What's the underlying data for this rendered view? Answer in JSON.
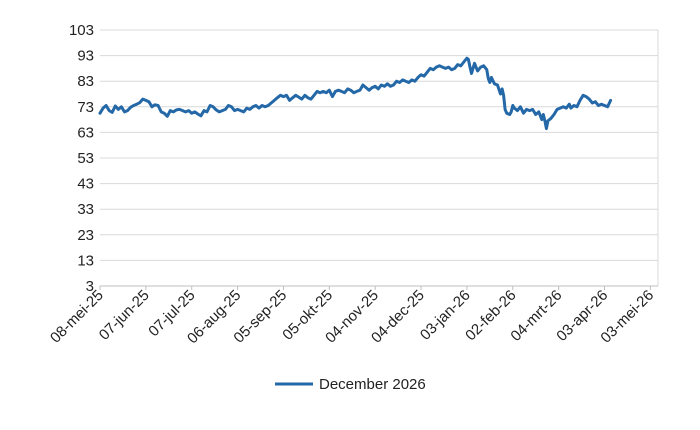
{
  "chart_data": {
    "type": "line",
    "title": "",
    "xlabel": "",
    "ylabel": "",
    "ylim": [
      3,
      103
    ],
    "yticks": [
      3,
      13,
      23,
      33,
      43,
      53,
      63,
      73,
      83,
      93,
      103
    ],
    "xlim": [
      "2025-05-08",
      "2026-05-08"
    ],
    "x_tick_labels": [
      "08-mei-25",
      "07-jun-25",
      "07-jul-25",
      "06-aug-25",
      "05-sep-25",
      "05-okt-25",
      "04-nov-25",
      "04-dec-25",
      "03-jan-26",
      "02-feb-26",
      "04-mrt-26",
      "03-apr-26",
      "03-mei-26"
    ],
    "x_tick_dates": [
      "2025-05-08",
      "2025-06-07",
      "2025-07-07",
      "2025-08-06",
      "2025-09-05",
      "2025-10-05",
      "2025-11-04",
      "2025-12-04",
      "2026-01-03",
      "2026-02-02",
      "2026-03-04",
      "2026-04-03",
      "2026-05-03"
    ],
    "grid": "horizontal",
    "legend": "bottom-center",
    "series": [
      {
        "name": "December 2026",
        "color": "#2468a8",
        "points": [
          [
            "2025-05-08",
            70.5
          ],
          [
            "2025-05-10",
            72.5
          ],
          [
            "2025-05-12",
            73.5
          ],
          [
            "2025-05-14",
            71.5
          ],
          [
            "2025-05-16",
            70.8
          ],
          [
            "2025-05-18",
            73.3
          ],
          [
            "2025-05-20",
            72.0
          ],
          [
            "2025-05-22",
            73.0
          ],
          [
            "2025-05-24",
            71.0
          ],
          [
            "2025-05-26",
            71.5
          ],
          [
            "2025-05-28",
            72.8
          ],
          [
            "2025-05-30",
            73.5
          ],
          [
            "2025-06-01",
            74.0
          ],
          [
            "2025-06-03",
            74.6
          ],
          [
            "2025-06-05",
            76.0
          ],
          [
            "2025-06-07",
            75.5
          ],
          [
            "2025-06-09",
            75.0
          ],
          [
            "2025-06-11",
            73.0
          ],
          [
            "2025-06-13",
            73.8
          ],
          [
            "2025-06-15",
            73.5
          ],
          [
            "2025-06-17",
            71.0
          ],
          [
            "2025-06-19",
            70.5
          ],
          [
            "2025-06-21",
            69.3
          ],
          [
            "2025-06-23",
            71.5
          ],
          [
            "2025-06-25",
            71.0
          ],
          [
            "2025-06-27",
            71.8
          ],
          [
            "2025-06-29",
            72.0
          ],
          [
            "2025-07-01",
            71.5
          ],
          [
            "2025-07-03",
            71.0
          ],
          [
            "2025-07-05",
            71.5
          ],
          [
            "2025-07-07",
            70.5
          ],
          [
            "2025-07-09",
            71.0
          ],
          [
            "2025-07-11",
            70.2
          ],
          [
            "2025-07-13",
            69.5
          ],
          [
            "2025-07-15",
            71.5
          ],
          [
            "2025-07-17",
            71.0
          ],
          [
            "2025-07-19",
            73.5
          ],
          [
            "2025-07-21",
            73.0
          ],
          [
            "2025-07-23",
            71.8
          ],
          [
            "2025-07-25",
            71.0
          ],
          [
            "2025-07-27",
            71.5
          ],
          [
            "2025-07-29",
            72.0
          ],
          [
            "2025-07-31",
            73.5
          ],
          [
            "2025-08-02",
            73.0
          ],
          [
            "2025-08-04",
            71.5
          ],
          [
            "2025-08-06",
            72.0
          ],
          [
            "2025-08-08",
            71.5
          ],
          [
            "2025-08-10",
            71.0
          ],
          [
            "2025-08-12",
            72.5
          ],
          [
            "2025-08-14",
            72.0
          ],
          [
            "2025-08-16",
            73.0
          ],
          [
            "2025-08-18",
            73.5
          ],
          [
            "2025-08-20",
            72.5
          ],
          [
            "2025-08-22",
            73.5
          ],
          [
            "2025-08-24",
            73.0
          ],
          [
            "2025-08-26",
            73.5
          ],
          [
            "2025-08-28",
            74.5
          ],
          [
            "2025-08-30",
            75.5
          ],
          [
            "2025-09-01",
            76.5
          ],
          [
            "2025-09-03",
            77.5
          ],
          [
            "2025-09-05",
            77.0
          ],
          [
            "2025-09-07",
            77.5
          ],
          [
            "2025-09-09",
            75.5
          ],
          [
            "2025-09-11",
            76.5
          ],
          [
            "2025-09-13",
            77.5
          ],
          [
            "2025-09-15",
            76.8
          ],
          [
            "2025-09-17",
            76.0
          ],
          [
            "2025-09-19",
            77.5
          ],
          [
            "2025-09-21",
            76.5
          ],
          [
            "2025-09-23",
            76.0
          ],
          [
            "2025-09-25",
            77.5
          ],
          [
            "2025-09-27",
            79.0
          ],
          [
            "2025-09-29",
            78.5
          ],
          [
            "2025-10-01",
            79.0
          ],
          [
            "2025-10-03",
            78.5
          ],
          [
            "2025-10-05",
            79.5
          ],
          [
            "2025-10-07",
            77.0
          ],
          [
            "2025-10-09",
            79.0
          ],
          [
            "2025-10-11",
            79.5
          ],
          [
            "2025-10-13",
            79.0
          ],
          [
            "2025-10-15",
            78.5
          ],
          [
            "2025-10-17",
            80.0
          ],
          [
            "2025-10-19",
            79.5
          ],
          [
            "2025-10-21",
            78.5
          ],
          [
            "2025-10-23",
            79.0
          ],
          [
            "2025-10-25",
            79.5
          ],
          [
            "2025-10-27",
            81.5
          ],
          [
            "2025-10-29",
            80.5
          ],
          [
            "2025-10-31",
            79.5
          ],
          [
            "2025-11-02",
            80.5
          ],
          [
            "2025-11-04",
            81.0
          ],
          [
            "2025-11-06",
            80.0
          ],
          [
            "2025-11-08",
            81.5
          ],
          [
            "2025-11-10",
            81.0
          ],
          [
            "2025-11-12",
            82.0
          ],
          [
            "2025-11-14",
            81.0
          ],
          [
            "2025-11-16",
            81.5
          ],
          [
            "2025-11-18",
            83.0
          ],
          [
            "2025-11-20",
            82.5
          ],
          [
            "2025-11-22",
            83.5
          ],
          [
            "2025-11-24",
            83.0
          ],
          [
            "2025-11-26",
            82.5
          ],
          [
            "2025-11-28",
            83.5
          ],
          [
            "2025-11-30",
            83.0
          ],
          [
            "2025-12-02",
            84.5
          ],
          [
            "2025-12-04",
            85.5
          ],
          [
            "2025-12-06",
            85.0
          ],
          [
            "2025-12-08",
            86.5
          ],
          [
            "2025-12-10",
            88.0
          ],
          [
            "2025-12-12",
            87.5
          ],
          [
            "2025-12-14",
            88.5
          ],
          [
            "2025-12-16",
            89.0
          ],
          [
            "2025-12-18",
            88.5
          ],
          [
            "2025-12-20",
            88.0
          ],
          [
            "2025-12-22",
            88.5
          ],
          [
            "2025-12-24",
            87.5
          ],
          [
            "2025-12-26",
            88.0
          ],
          [
            "2025-12-28",
            89.5
          ],
          [
            "2025-12-30",
            89.0
          ],
          [
            "2026-01-01",
            90.5
          ],
          [
            "2026-01-03",
            92.0
          ],
          [
            "2026-01-04",
            91.5
          ],
          [
            "2026-01-05",
            88.5
          ],
          [
            "2026-01-06",
            86.0
          ],
          [
            "2026-01-07",
            88.0
          ],
          [
            "2026-01-08",
            90.0
          ],
          [
            "2026-01-10",
            87.0
          ],
          [
            "2026-01-12",
            88.5
          ],
          [
            "2026-01-14",
            89.0
          ],
          [
            "2026-01-16",
            87.5
          ],
          [
            "2026-01-17",
            84.0
          ],
          [
            "2026-01-18",
            82.5
          ],
          [
            "2026-01-19",
            84.5
          ],
          [
            "2026-01-21",
            82.0
          ],
          [
            "2026-01-23",
            81.5
          ],
          [
            "2026-01-25",
            78.0
          ],
          [
            "2026-01-26",
            80.0
          ],
          [
            "2026-01-27",
            77.5
          ],
          [
            "2026-01-28",
            72.0
          ],
          [
            "2026-01-29",
            70.5
          ],
          [
            "2026-01-31",
            70.0
          ],
          [
            "2026-02-01",
            71.0
          ],
          [
            "2026-02-02",
            73.5
          ],
          [
            "2026-02-03",
            72.5
          ],
          [
            "2026-02-05",
            71.5
          ],
          [
            "2026-02-07",
            73.0
          ],
          [
            "2026-02-09",
            70.5
          ],
          [
            "2026-02-11",
            72.0
          ],
          [
            "2026-02-13",
            71.5
          ],
          [
            "2026-02-15",
            72.0
          ],
          [
            "2026-02-17",
            70.0
          ],
          [
            "2026-02-19",
            71.0
          ],
          [
            "2026-02-21",
            68.0
          ],
          [
            "2026-02-22",
            70.0
          ],
          [
            "2026-02-23",
            67.5
          ],
          [
            "2026-02-24",
            64.5
          ],
          [
            "2026-02-25",
            67.5
          ],
          [
            "2026-02-27",
            68.5
          ],
          [
            "2026-03-01",
            70.0
          ],
          [
            "2026-03-03",
            72.0
          ],
          [
            "2026-03-05",
            72.5
          ],
          [
            "2026-03-07",
            73.0
          ],
          [
            "2026-03-09",
            72.5
          ],
          [
            "2026-03-11",
            74.0
          ],
          [
            "2026-03-12",
            72.5
          ],
          [
            "2026-03-14",
            73.5
          ],
          [
            "2026-03-16",
            73.0
          ],
          [
            "2026-03-18",
            75.5
          ],
          [
            "2026-03-20",
            77.5
          ],
          [
            "2026-03-22",
            77.0
          ],
          [
            "2026-03-24",
            76.0
          ],
          [
            "2026-03-26",
            74.5
          ],
          [
            "2026-03-28",
            75.0
          ],
          [
            "2026-03-30",
            73.5
          ],
          [
            "2026-04-01",
            74.0
          ],
          [
            "2026-04-03",
            73.5
          ],
          [
            "2026-04-05",
            73.0
          ],
          [
            "2026-04-07",
            75.5
          ]
        ]
      }
    ]
  }
}
